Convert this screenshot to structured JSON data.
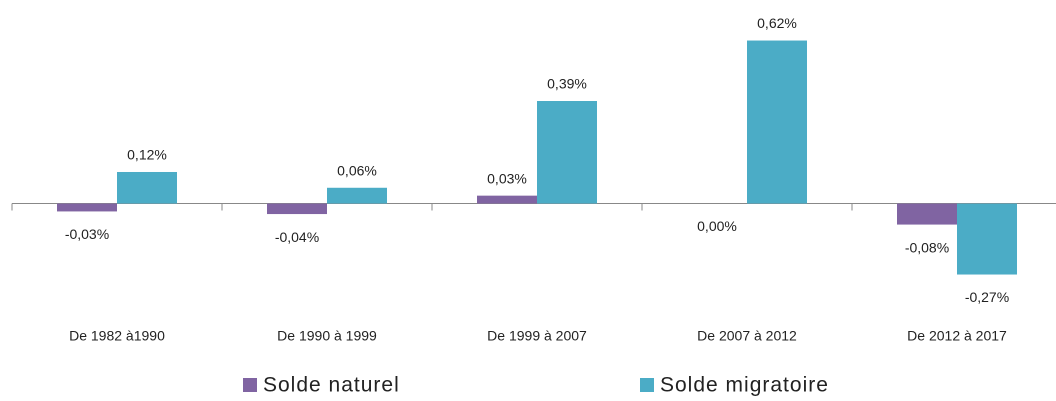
{
  "chart_data": {
    "type": "bar",
    "categories": [
      "De 1982 à1990",
      "De 1990 à 1999",
      "De 1999 à 2007",
      "De 2007 à 2012",
      "De 2012 à 2017"
    ],
    "series": [
      {
        "name": "Solde naturel",
        "color": "#8064a2",
        "values": [
          -0.03,
          -0.04,
          0.03,
          0.0,
          -0.08
        ],
        "value_labels": [
          "-0,03%",
          "-0,04%",
          "0,03%",
          "0,00%",
          "-0,08%"
        ]
      },
      {
        "name": "Solde migratoire",
        "color": "#4bacc6",
        "values": [
          0.12,
          0.06,
          0.39,
          0.62,
          -0.27
        ],
        "value_labels": [
          "0,12%",
          "0,06%",
          "0,39%",
          "0,62%",
          "-0,27%"
        ]
      }
    ],
    "ylim": [
      -0.5,
      0.7
    ],
    "legend": "bottom"
  }
}
